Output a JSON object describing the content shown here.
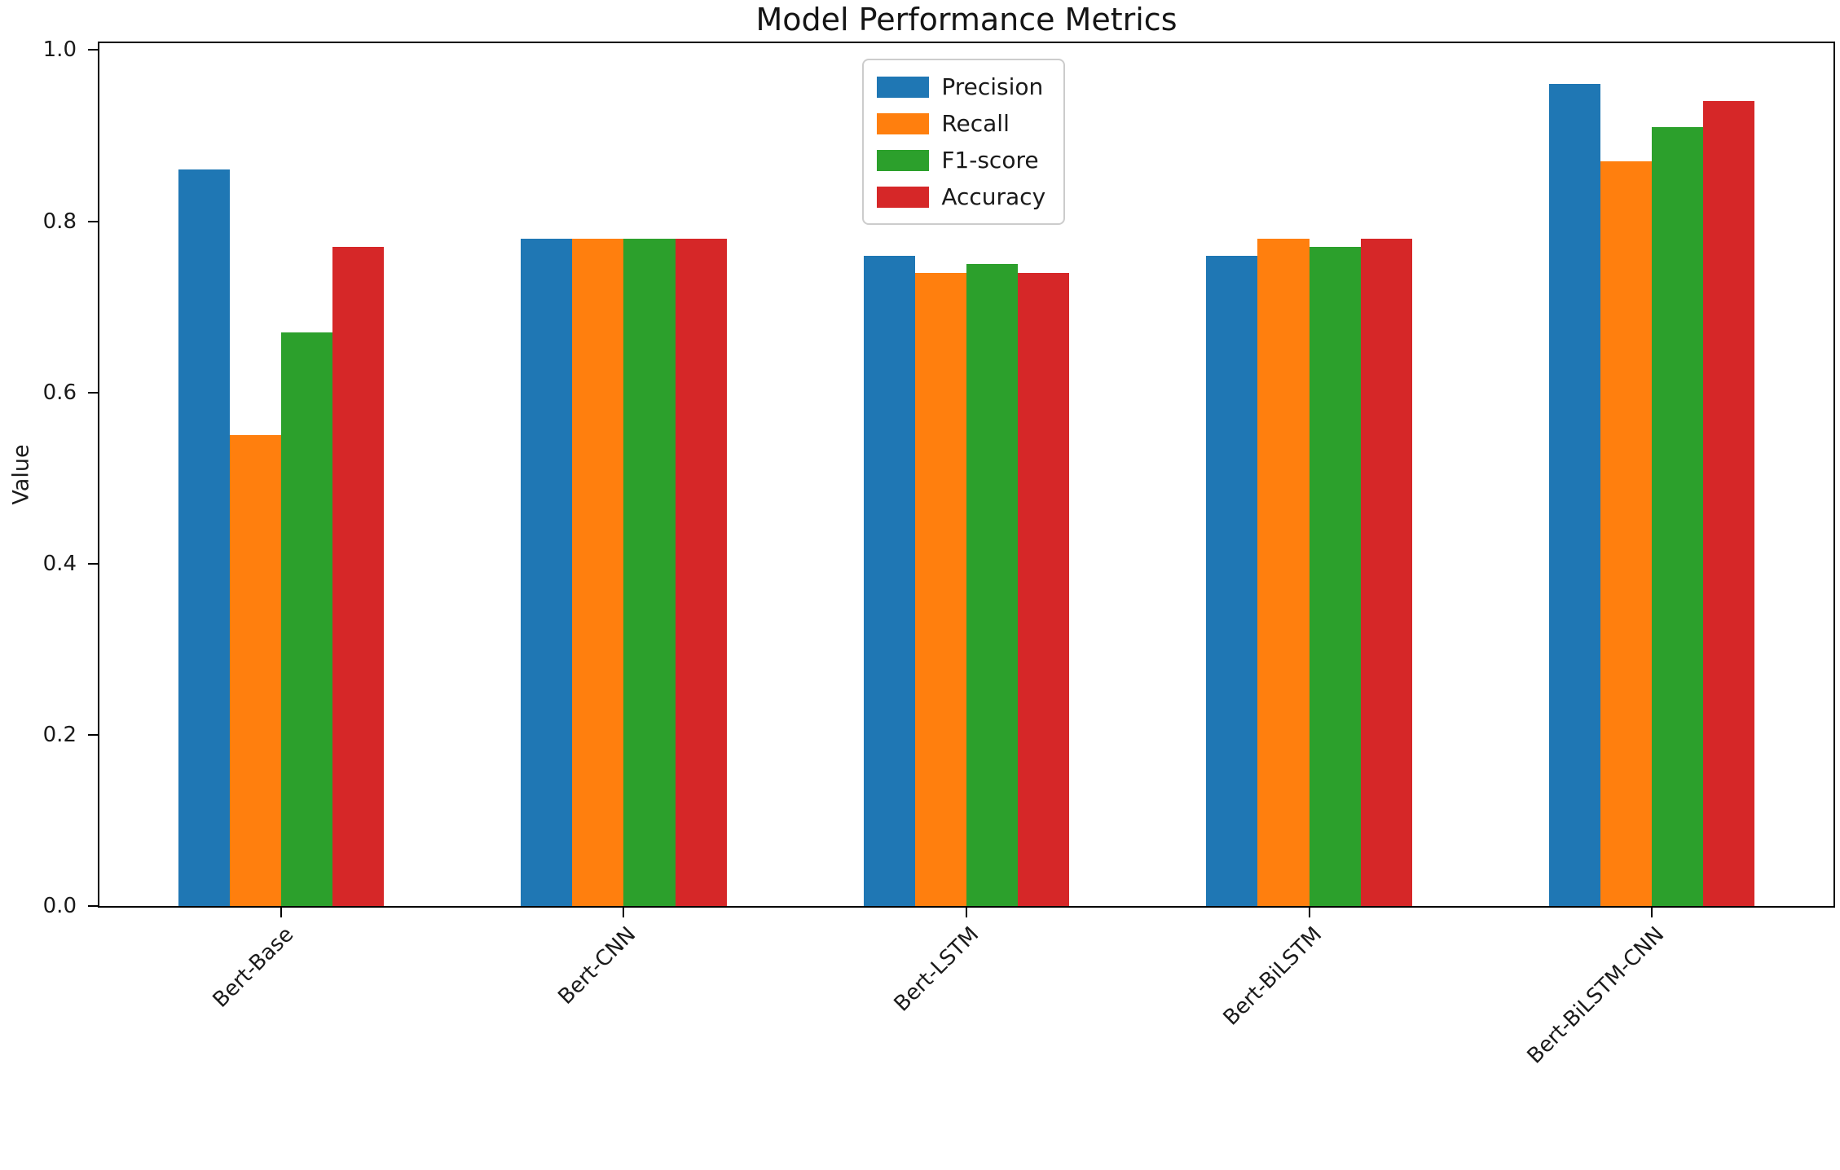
{
  "chart_data": {
    "type": "bar",
    "title": "Model Performance Metrics",
    "xlabel": "",
    "ylabel": "Value",
    "categories": [
      "Bert-Base",
      "Bert-CNN",
      "Bert-LSTM",
      "Bert-BiLSTM",
      "Bert-BiLSTM-CNN"
    ],
    "series": [
      {
        "name": "Precision",
        "color": "#1f77b4",
        "values": [
          0.86,
          0.78,
          0.76,
          0.76,
          0.96
        ]
      },
      {
        "name": "Recall",
        "color": "#ff7f0e",
        "values": [
          0.55,
          0.78,
          0.74,
          0.78,
          0.87
        ]
      },
      {
        "name": "F1-score",
        "color": "#2ca02c",
        "values": [
          0.67,
          0.78,
          0.75,
          0.77,
          0.91
        ]
      },
      {
        "name": "Accuracy",
        "color": "#d62728",
        "values": [
          0.77,
          0.78,
          0.74,
          0.78,
          0.94
        ]
      }
    ],
    "ylim": [
      0,
      1.008
    ],
    "yticks": [
      0.0,
      0.2,
      0.4,
      0.6,
      0.8,
      1.0
    ],
    "ytick_labels": [
      "0.0",
      "0.2",
      "0.4",
      "0.6",
      "0.8",
      "1.0"
    ],
    "xlim": [
      -0.53,
      4.53
    ],
    "bar_width": 0.15,
    "group_offsets": [
      -1.5,
      -0.5,
      0.5,
      1.5
    ],
    "grid": false,
    "legend_position": "upper-center",
    "x_tick_rotation_deg": 45
  }
}
